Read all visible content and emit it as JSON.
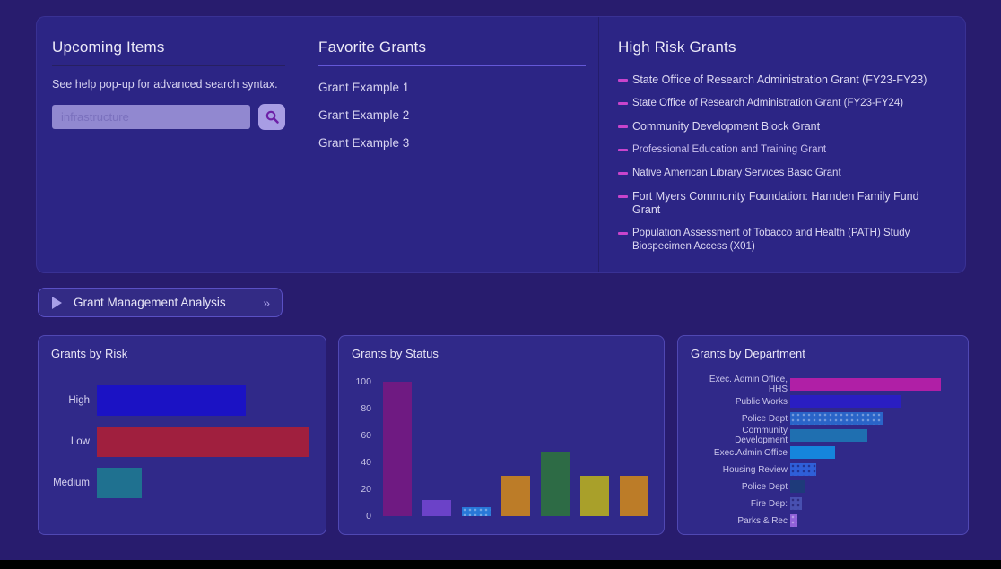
{
  "colors": {
    "page_bg": "#281c6e",
    "card_bg": "#2c2585",
    "panel_bg": "#302989",
    "accent_border": "#5a50c4",
    "bullet_magenta": "#c944cc",
    "search_input_bg": "#9188d0",
    "search_button_bg": "#a89de4",
    "magnifier_purple": "#6d1fa6"
  },
  "top_card": {
    "upcoming": {
      "title": "Upcoming Items",
      "help_text": "See help pop-up for advanced search syntax.",
      "search_placeholder": "infrastructure"
    },
    "favorites": {
      "title": "Favorite Grants",
      "items": [
        "Grant Example 1",
        "Grant Example 2",
        "Grant Example 3"
      ]
    },
    "high_risk": {
      "title": "High Risk Grants",
      "items": [
        "State Office of Research Administration Grant (FY23-FY23)",
        "State Office of Research Administration Grant (FY23-FY24)",
        "Community Development Block Grant",
        "Professional Education and Training Grant",
        "Native American Library Services Basic Grant",
        "Fort Myers Community Foundation: Harnden Family Fund Grant",
        "Population Assessment of Tobacco and Health (PATH) Study Biospecimen Access (X01)"
      ]
    }
  },
  "analysis_button": {
    "label": "Grant Management Analysis",
    "chevron": "»"
  },
  "chart_data": [
    {
      "type": "bar",
      "orientation": "horizontal",
      "title": "Grants by Risk",
      "categories": [
        "High",
        "Low",
        "Medium"
      ],
      "values": [
        70,
        100,
        21
      ],
      "colors": [
        "#1b12c4",
        "#a01f3e",
        "#1f7190"
      ],
      "patterns": [
        "solid",
        "solid",
        "solid"
      ],
      "xlim": [
        0,
        100
      ],
      "grid": false,
      "legend": false,
      "note_units": "percent of longest bar (no axis shown)"
    },
    {
      "type": "bar",
      "orientation": "vertical",
      "title": "Grants by Status",
      "categories": [
        "",
        "",
        "",
        "",
        "",
        "",
        ""
      ],
      "values": [
        100,
        12,
        7,
        30,
        48,
        30,
        30
      ],
      "colors": [
        "#6f1a82",
        "#6b42c8",
        "#2878d8",
        "#bc7c28",
        "#2d6b45",
        "#a9a02a",
        "#bc7c28"
      ],
      "patterns": [
        "solid",
        "solid",
        "dots",
        "solid",
        "solid",
        "solid",
        "solid"
      ],
      "yticks": [
        0,
        20,
        40,
        60,
        80,
        100
      ],
      "ylim": [
        0,
        105
      ],
      "grid": false,
      "legend": false
    },
    {
      "type": "bar",
      "orientation": "horizontal",
      "title": "Grants by Department",
      "categories": [
        "Exec. Admin Office, HHS",
        "Public Works",
        "Police Dept",
        "Community Development",
        "Exec.Admin Office",
        "Housing Review",
        "Police Dept",
        "Fire Dep:",
        "Parks & Rec"
      ],
      "values": [
        100,
        74,
        62,
        51,
        30,
        17,
        10,
        8,
        5
      ],
      "colors": [
        "#b01fa6",
        "#2a1ec2",
        "#2a64c8",
        "#1f6fb0",
        "#1585dc",
        "#2f5fd8",
        "#1e3a7a",
        "#4850b0",
        "#9161d9"
      ],
      "patterns": [
        "solid",
        "solid",
        "dots",
        "solid",
        "solid",
        "dots-dark",
        "solid",
        "dots-dark",
        "dots"
      ],
      "xlim": [
        0,
        100
      ],
      "grid": false,
      "legend": false,
      "note_units": "percent of longest bar (no axis shown)"
    }
  ]
}
